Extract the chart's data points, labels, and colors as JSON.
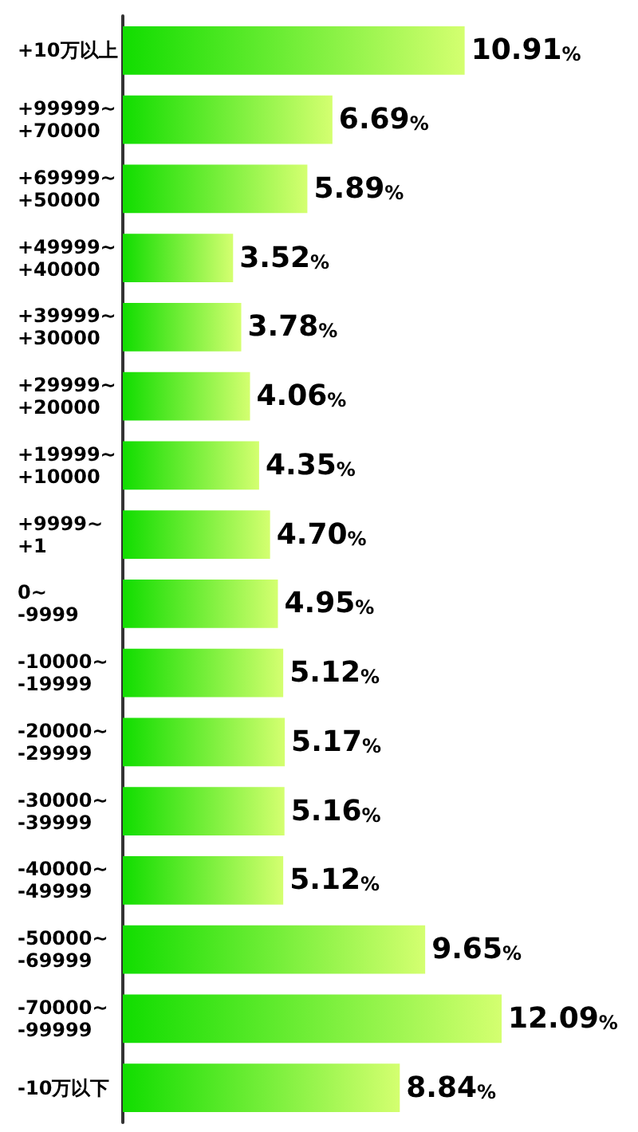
{
  "chart_data": {
    "type": "bar",
    "orientation": "horizontal",
    "categories": [
      "+10万以上",
      "+99999~\n+70000",
      "+69999~\n+50000",
      "+49999~\n+40000",
      "+39999~\n+30000",
      "+29999~\n+20000",
      "+19999~\n+10000",
      "+9999~\n+1",
      "0~\n-9999",
      "-10000~\n-19999",
      "-20000~\n-29999",
      "-30000~\n-39999",
      "-40000~\n-49999",
      "-50000~\n-69999",
      "-70000~\n-99999",
      "-10万以下"
    ],
    "values": [
      10.91,
      6.69,
      5.89,
      3.52,
      3.78,
      4.06,
      4.35,
      4.7,
      4.95,
      5.12,
      5.17,
      5.16,
      5.12,
      9.65,
      12.09,
      8.84
    ],
    "value_labels": [
      "10.91%",
      "6.69%",
      "5.89%",
      "3.52%",
      "3.78%",
      "4.06%",
      "4.35%",
      "4.70%",
      "4.95%",
      "5.12%",
      "5.17%",
      "5.16%",
      "5.12%",
      "9.65%",
      "12.09%",
      "8.84%"
    ],
    "color": "#11dd00",
    "grid": false
  }
}
